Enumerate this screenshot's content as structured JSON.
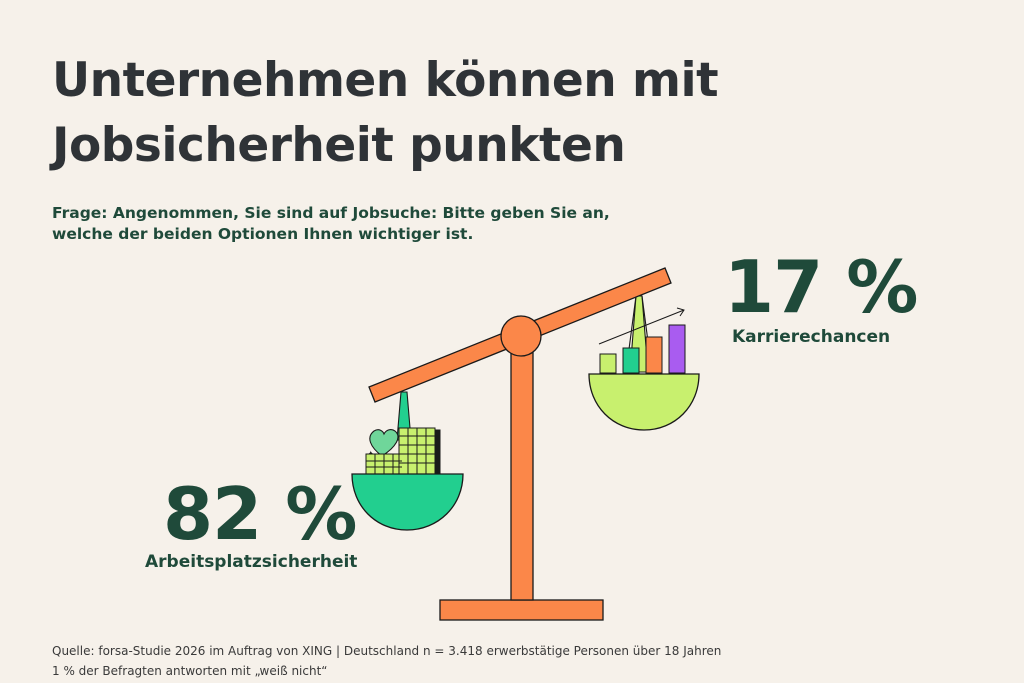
{
  "title": {
    "line1": "Unternehmen können mit",
    "line2": "Jobsicherheit punkten"
  },
  "question": {
    "line1": "Frage: Angenommen, Sie sind auf Jobsuche: Bitte geben Sie an,",
    "line2": "welche der beiden Optionen Ihnen wichtiger ist."
  },
  "chart_data": {
    "type": "bar",
    "categories": [
      "Arbeitsplatzsicherheit",
      "Karrierechancen"
    ],
    "values": [
      82,
      17
    ],
    "value_labels": [
      "82 %",
      "17 %"
    ],
    "unit": "%"
  },
  "source": {
    "line1": "Quelle: forsa-Studie 2026 im Auftrag von XING | Deutschland n = 3.418 erwerbstätige Personen über 18 Jahren",
    "line2": "1 % der Befragten antworten mit „weiß nicht“"
  },
  "colors": {
    "background": "#f6f1ea",
    "scale_orange": "#fb8749",
    "pan_left": "#22cf8f",
    "pan_right": "#c8f06e",
    "text_dark": "#2f3337",
    "text_green": "#1f4a3a",
    "bar_purple": "#a95cf0"
  },
  "icons": {
    "left_pan": [
      "heart-icon",
      "office-building-icon"
    ],
    "right_pan": [
      "growth-chart-icon"
    ]
  }
}
